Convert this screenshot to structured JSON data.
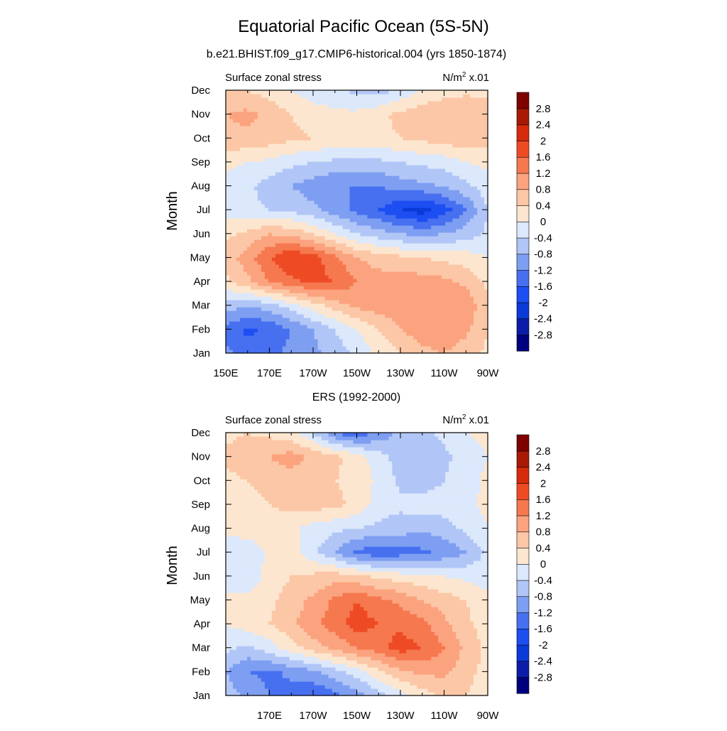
{
  "figure": {
    "title": "Equatorial Pacific Ocean (5S-5N)"
  },
  "colorbar": {
    "levels": [
      -2.8,
      -2.4,
      -2,
      -1.6,
      -1.2,
      -0.8,
      -0.4,
      0,
      0.4,
      0.8,
      1.2,
      1.6,
      2,
      2.4,
      2.8
    ],
    "labels": [
      "-2.8",
      "-2.4",
      "-2",
      "-1.6",
      "-1.2",
      "-0.8",
      "-0.4",
      "0",
      "0.4",
      "0.8",
      "1.2",
      "1.6",
      "2",
      "2.4",
      "2.8"
    ],
    "colors": [
      "#00007f",
      "#0a1ca8",
      "#0b3ad8",
      "#1d4ef2",
      "#4670f0",
      "#7e9ef2",
      "#b1c6f7",
      "#dce8fb",
      "#fde6cf",
      "#fcc7a6",
      "#fba37f",
      "#f6784f",
      "#ee4b25",
      "#d62b0d",
      "#a71a05",
      "#7f0000"
    ]
  },
  "chart_data": [
    {
      "type": "heatmap",
      "subtitle": "b.e21.BHIST.f09_g17.CMIP6-historical.004 (yrs 1850-1874)",
      "left_label": "Surface zonal stress",
      "right_label": "N/m",
      "right_label_sup": "2",
      "right_label_suffix": " x.01",
      "ylabel": "Month",
      "x_ticks": [
        "150E",
        "170E",
        "170W",
        "150W",
        "130W",
        "110W",
        "90W"
      ],
      "y_ticks": [
        "Jan",
        "Feb",
        "Mar",
        "Apr",
        "May",
        "Jun",
        "Jul",
        "Aug",
        "Sep",
        "Oct",
        "Nov",
        "Dec"
      ],
      "x": [
        150,
        160,
        170,
        180,
        190,
        200,
        210,
        220,
        230,
        240,
        250,
        260,
        270
      ],
      "y": [
        "Jan",
        "Feb",
        "Mar",
        "Apr",
        "May",
        "Jun",
        "Jul",
        "Aug",
        "Sep",
        "Oct",
        "Nov",
        "Dec"
      ],
      "z": [
        [
          -1.1,
          -1.4,
          -1.3,
          -1.1,
          -0.9,
          -0.6,
          -0.3,
          0.1,
          0.4,
          0.7,
          0.8,
          0.6,
          0.3
        ],
        [
          -1.3,
          -1.7,
          -1.5,
          -1.2,
          -0.8,
          -0.4,
          0.0,
          0.4,
          0.8,
          1.0,
          1.1,
          0.9,
          0.4
        ],
        [
          -0.6,
          -0.8,
          -0.6,
          -0.2,
          0.2,
          0.6,
          0.9,
          1.0,
          1.1,
          1.2,
          1.2,
          1.1,
          0.5
        ],
        [
          0.3,
          0.7,
          1.2,
          1.5,
          1.7,
          1.6,
          1.2,
          1.0,
          1.0,
          1.0,
          0.9,
          0.7,
          0.3
        ],
        [
          0.6,
          1.0,
          1.6,
          2.0,
          1.8,
          1.3,
          0.8,
          0.6,
          0.5,
          0.4,
          0.3,
          0.2,
          0.0
        ],
        [
          0.3,
          0.5,
          0.8,
          0.7,
          0.4,
          0.0,
          -0.4,
          -0.6,
          -0.8,
          -0.9,
          -0.8,
          -0.6,
          -0.3
        ],
        [
          -0.2,
          -0.3,
          -0.4,
          -0.5,
          -0.7,
          -1.0,
          -1.3,
          -1.6,
          -2.0,
          -2.2,
          -1.8,
          -1.2,
          -0.4
        ],
        [
          -0.1,
          -0.3,
          -0.6,
          -0.8,
          -1.0,
          -1.2,
          -1.2,
          -1.2,
          -1.0,
          -0.9,
          -0.8,
          -0.5,
          -0.2
        ],
        [
          0.1,
          0.0,
          -0.1,
          -0.3,
          -0.4,
          -0.5,
          -0.5,
          -0.5,
          -0.4,
          -0.3,
          -0.2,
          0.0,
          0.1
        ],
        [
          0.7,
          0.7,
          0.6,
          0.5,
          0.4,
          0.3,
          0.3,
          0.3,
          0.4,
          0.5,
          0.6,
          0.7,
          0.6
        ],
        [
          0.8,
          0.9,
          0.7,
          0.4,
          0.2,
          0.1,
          0.1,
          0.3,
          0.5,
          0.7,
          0.8,
          0.8,
          0.6
        ],
        [
          0.5,
          0.4,
          0.2,
          0.0,
          -0.2,
          -0.3,
          -0.5,
          -0.6,
          -0.3,
          0.0,
          0.2,
          0.3,
          0.3
        ]
      ],
      "zlim": [
        -3.2,
        3.2
      ]
    },
    {
      "type": "heatmap",
      "subtitle": "ERS (1992-2000)",
      "left_label": "Surface zonal stress",
      "right_label": "N/m",
      "right_label_sup": "2",
      "right_label_suffix": " x.01",
      "ylabel": "Month",
      "x_ticks": [
        "170E",
        "170W",
        "150W",
        "130W",
        "110W",
        "90W"
      ],
      "y_ticks": [
        "Jan",
        "Feb",
        "Mar",
        "Apr",
        "May",
        "Jun",
        "Jul",
        "Aug",
        "Sep",
        "Oct",
        "Nov",
        "Dec"
      ],
      "x": [
        150,
        160,
        170,
        180,
        190,
        200,
        210,
        220,
        230,
        240,
        250,
        260,
        270
      ],
      "y": [
        "Jan",
        "Feb",
        "Mar",
        "Apr",
        "May",
        "Jun",
        "Jul",
        "Aug",
        "Sep",
        "Oct",
        "Nov",
        "Dec"
      ],
      "z": [
        [
          -0.6,
          -0.9,
          -1.2,
          -1.4,
          -1.6,
          -1.3,
          -1.0,
          -0.6,
          -0.2,
          0.2,
          0.5,
          0.4,
          0.1
        ],
        [
          -0.8,
          -1.2,
          -1.3,
          -1.1,
          -0.9,
          -0.6,
          -0.2,
          0.3,
          0.7,
          0.9,
          0.9,
          0.6,
          0.2
        ],
        [
          -0.3,
          -0.5,
          -0.2,
          0.2,
          0.6,
          0.9,
          1.2,
          1.4,
          1.8,
          1.6,
          1.2,
          0.7,
          0.3
        ],
        [
          0.0,
          0.2,
          0.4,
          0.7,
          1.1,
          1.4,
          1.8,
          1.6,
          1.5,
          1.3,
          0.9,
          0.5,
          0.2
        ],
        [
          0.1,
          0.2,
          0.3,
          0.6,
          0.9,
          1.3,
          1.6,
          1.3,
          1.1,
          0.8,
          0.6,
          0.4,
          0.1
        ],
        [
          -0.3,
          -0.4,
          0.2,
          0.4,
          0.5,
          0.6,
          0.5,
          0.3,
          0.2,
          0.1,
          0.0,
          -0.1,
          -0.2
        ],
        [
          -0.2,
          -0.3,
          0.1,
          0.2,
          -0.3,
          -0.8,
          -1.3,
          -1.5,
          -1.4,
          -1.3,
          -1.1,
          -0.8,
          -0.3
        ],
        [
          0.1,
          0.2,
          0.3,
          0.1,
          -0.2,
          -0.3,
          -0.4,
          -0.5,
          -0.6,
          -0.7,
          -0.6,
          -0.3,
          0.0
        ],
        [
          0.2,
          0.3,
          0.4,
          0.5,
          0.6,
          0.5,
          0.3,
          -0.2,
          -0.3,
          -0.2,
          -0.2,
          -0.1,
          0.1
        ],
        [
          0.3,
          0.4,
          0.5,
          0.6,
          0.5,
          0.4,
          0.3,
          -0.1,
          -0.5,
          -0.6,
          -0.4,
          -0.2,
          0.1
        ],
        [
          0.5,
          0.6,
          0.8,
          1.0,
          0.7,
          0.5,
          0.2,
          -0.2,
          -0.6,
          -0.7,
          -0.5,
          -0.2,
          0.0
        ],
        [
          0.3,
          0.4,
          0.3,
          0.1,
          -0.4,
          -1.2,
          -1.5,
          -1.1,
          -0.7,
          -0.5,
          -0.3,
          0.0,
          0.1
        ]
      ],
      "zlim": [
        -3.2,
        3.2
      ]
    }
  ]
}
